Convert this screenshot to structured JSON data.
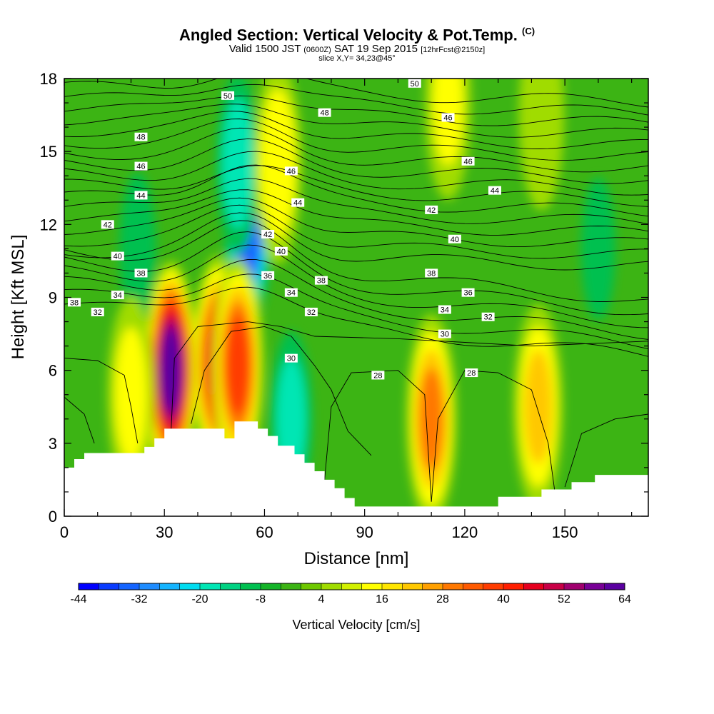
{
  "title": {
    "main": "Angled Section: Vertical Velocity & Pot.Temp.",
    "main_unit": "(C)",
    "valid": "Valid 1500 JST",
    "valid_z": "(0600Z)",
    "valid_date": "SAT 19 Sep 2015",
    "fcst": "[12hrFcst@2150z]",
    "slice": "slice X,Y= 34,23@45°"
  },
  "chart_data": {
    "type": "heatmap",
    "xlabel": "Distance [nm]",
    "ylabel": "Height [Kft MSL]",
    "xlim": [
      0,
      175
    ],
    "ylim": [
      0,
      18
    ],
    "x_ticks": [
      0,
      30,
      60,
      90,
      120,
      150
    ],
    "y_ticks": [
      0,
      3,
      6,
      9,
      12,
      15,
      18
    ],
    "colorbar": {
      "label": "Vertical Velocity [cm/s]",
      "min": -44,
      "max": 64,
      "step": 4,
      "tick_labels": [
        -44,
        -32,
        -20,
        -8,
        4,
        16,
        28,
        40,
        52,
        64
      ],
      "colors": [
        "#0000ff",
        "#0a3cff",
        "#1464ff",
        "#1e8cff",
        "#14b4ff",
        "#00dcf0",
        "#00e6b4",
        "#00d282",
        "#00c050",
        "#14b428",
        "#3cb414",
        "#6ec800",
        "#a0dc00",
        "#d2f000",
        "#ffff00",
        "#ffe600",
        "#ffc800",
        "#ffa000",
        "#ff7800",
        "#ff5a00",
        "#ff3c00",
        "#ff1e00",
        "#e6001e",
        "#c80046",
        "#a0006e",
        "#780096",
        "#5a00a0"
      ]
    },
    "updraft_cores": [
      {
        "x": 32,
        "y": 6.0,
        "value": 64
      },
      {
        "x": 46,
        "y": 6.3,
        "value": 44
      },
      {
        "x": 52,
        "y": 6.2,
        "value": 40
      },
      {
        "x": 110,
        "y": 4.0,
        "value": 30
      },
      {
        "x": 142,
        "y": 4.5,
        "value": 22
      },
      {
        "x": 20,
        "y": 5.0,
        "value": 14
      },
      {
        "x": 64,
        "y": 14.5,
        "value": 18
      },
      {
        "x": 115,
        "y": 17.0,
        "value": 12
      },
      {
        "x": 143,
        "y": 16.5,
        "value": 10
      }
    ],
    "downdraft_cores": [
      {
        "x": 55,
        "y": 11.8,
        "value": -36
      },
      {
        "x": 52,
        "y": 14.5,
        "value": -20
      },
      {
        "x": 68,
        "y": 4.0,
        "value": -18
      },
      {
        "x": 22,
        "y": 11.0,
        "value": -10
      },
      {
        "x": 160,
        "y": 11.0,
        "value": -8
      }
    ],
    "theta_labels": [
      {
        "x": 49,
        "y": 17.3,
        "text": "50"
      },
      {
        "x": 105,
        "y": 17.8,
        "text": "50"
      },
      {
        "x": 78,
        "y": 16.6,
        "text": "48"
      },
      {
        "x": 23,
        "y": 15.6,
        "text": "48"
      },
      {
        "x": 115,
        "y": 16.4,
        "text": "46"
      },
      {
        "x": 23,
        "y": 14.4,
        "text": "46"
      },
      {
        "x": 68,
        "y": 14.2,
        "text": "46"
      },
      {
        "x": 121,
        "y": 14.6,
        "text": "46"
      },
      {
        "x": 23,
        "y": 13.2,
        "text": "44"
      },
      {
        "x": 70,
        "y": 12.9,
        "text": "44"
      },
      {
        "x": 129,
        "y": 13.4,
        "text": "44"
      },
      {
        "x": 13,
        "y": 12.0,
        "text": "42"
      },
      {
        "x": 61,
        "y": 11.6,
        "text": "42"
      },
      {
        "x": 110,
        "y": 12.6,
        "text": "42"
      },
      {
        "x": 16,
        "y": 10.7,
        "text": "40"
      },
      {
        "x": 65,
        "y": 10.9,
        "text": "40"
      },
      {
        "x": 117,
        "y": 11.4,
        "text": "40"
      },
      {
        "x": 23,
        "y": 10.0,
        "text": "38"
      },
      {
        "x": 77,
        "y": 9.7,
        "text": "38"
      },
      {
        "x": 110,
        "y": 10.0,
        "text": "38"
      },
      {
        "x": 3,
        "y": 8.8,
        "text": "38"
      },
      {
        "x": 61,
        "y": 9.9,
        "text": "36"
      },
      {
        "x": 121,
        "y": 9.2,
        "text": "36"
      },
      {
        "x": 16,
        "y": 9.1,
        "text": "34"
      },
      {
        "x": 68,
        "y": 9.2,
        "text": "34"
      },
      {
        "x": 114,
        "y": 8.5,
        "text": "34"
      },
      {
        "x": 10,
        "y": 8.4,
        "text": "32"
      },
      {
        "x": 74,
        "y": 8.4,
        "text": "32"
      },
      {
        "x": 127,
        "y": 8.2,
        "text": "32"
      },
      {
        "x": 68,
        "y": 6.5,
        "text": "30"
      },
      {
        "x": 114,
        "y": 7.5,
        "text": "30"
      },
      {
        "x": 94,
        "y": 5.8,
        "text": "28"
      },
      {
        "x": 122,
        "y": 5.9,
        "text": "28"
      }
    ],
    "terrain": [
      [
        0,
        2.0
      ],
      [
        3,
        2.0
      ],
      [
        3,
        2.35
      ],
      [
        6,
        2.35
      ],
      [
        6,
        2.6
      ],
      [
        24,
        2.6
      ],
      [
        24,
        2.85
      ],
      [
        27,
        2.85
      ],
      [
        27,
        3.2
      ],
      [
        30,
        3.2
      ],
      [
        30,
        3.6
      ],
      [
        48,
        3.6
      ],
      [
        48,
        3.2
      ],
      [
        51,
        3.2
      ],
      [
        51,
        3.9
      ],
      [
        58,
        3.9
      ],
      [
        58,
        3.6
      ],
      [
        61,
        3.6
      ],
      [
        61,
        3.3
      ],
      [
        64,
        3.3
      ],
      [
        64,
        2.9
      ],
      [
        69,
        2.9
      ],
      [
        69,
        2.55
      ],
      [
        72,
        2.55
      ],
      [
        72,
        2.2
      ],
      [
        75,
        2.2
      ],
      [
        75,
        1.85
      ],
      [
        78,
        1.85
      ],
      [
        78,
        1.5
      ],
      [
        81,
        1.5
      ],
      [
        81,
        1.15
      ],
      [
        84,
        1.15
      ],
      [
        84,
        0.75
      ],
      [
        87,
        0.75
      ],
      [
        87,
        0.4
      ],
      [
        130,
        0.4
      ],
      [
        130,
        0.8
      ],
      [
        143,
        0.8
      ],
      [
        143,
        1.1
      ],
      [
        152,
        1.1
      ],
      [
        152,
        1.4
      ],
      [
        159,
        1.4
      ],
      [
        159,
        1.7
      ],
      [
        175,
        1.7
      ]
    ]
  }
}
